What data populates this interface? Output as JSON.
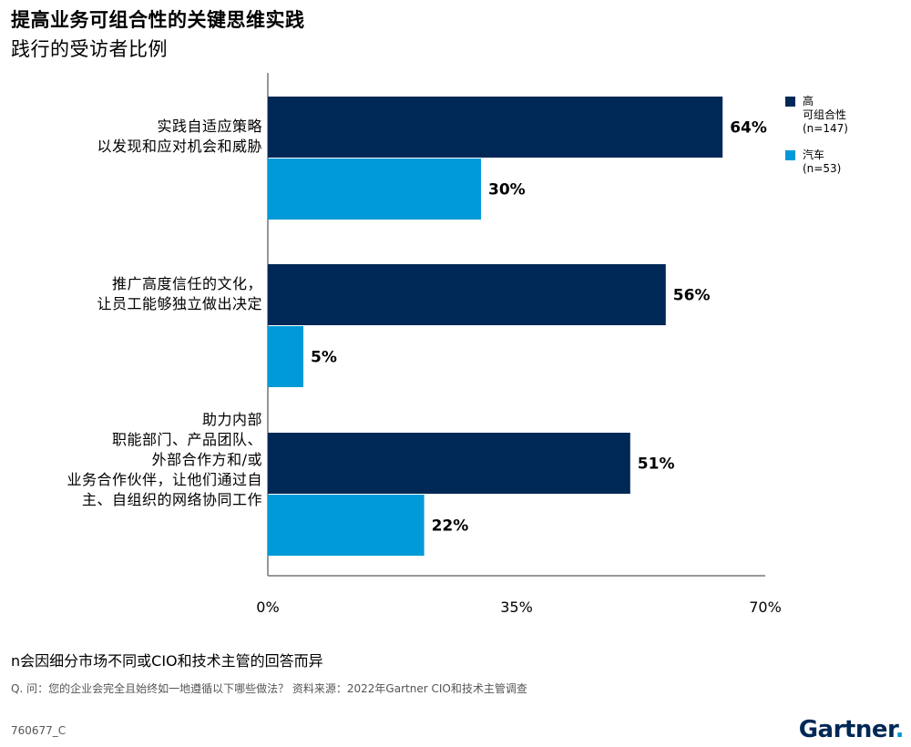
{
  "title": "提高业务可组合性的关键思维实践",
  "subtitle": "践行的受访者比例",
  "colors": {
    "high": "#002856",
    "auto": "#009ad8",
    "axis": "#777777"
  },
  "legend": [
    {
      "label": "高\n可组合性\n(n=147)",
      "color": "#002856"
    },
    {
      "label": "汽车\n(n=53)",
      "color": "#009ad8"
    }
  ],
  "chart_data": {
    "type": "bar",
    "orientation": "horizontal",
    "categories": [
      "实践自适应策略\n以发现和应对机会和威胁",
      "推广高度信任的文化，\n让员工能够独立做出决定",
      "助力内部\n职能部门、产品团队、\n外部合作方和/或\n业务合作伙伴，让他们通过自\n主、自组织的网络协同工作"
    ],
    "series": [
      {
        "name": "高 可组合性 (n=147)",
        "values": [
          64,
          56,
          51
        ]
      },
      {
        "name": "汽车 (n=53)",
        "values": [
          30,
          5,
          22
        ]
      }
    ],
    "value_labels": [
      [
        "64%",
        "56%",
        "51%"
      ],
      [
        "30%",
        "5%",
        "22%"
      ]
    ],
    "xlim": [
      0,
      70
    ],
    "xticks": [
      0,
      35,
      70
    ],
    "xtick_labels": [
      "0%",
      "35%",
      "70%"
    ],
    "grid": false,
    "legend_position": "top-right"
  },
  "footer": {
    "note": "n会因细分市场不同或CIO和技术主管的回答而异",
    "question": "Q. 问：您的企业会完全且始终如一地遵循以下哪些做法？ 资料来源：2022年Gartner CIO和技术主管调查",
    "code": "760677_C",
    "brand": "Gartner",
    "brand_dot": "."
  }
}
